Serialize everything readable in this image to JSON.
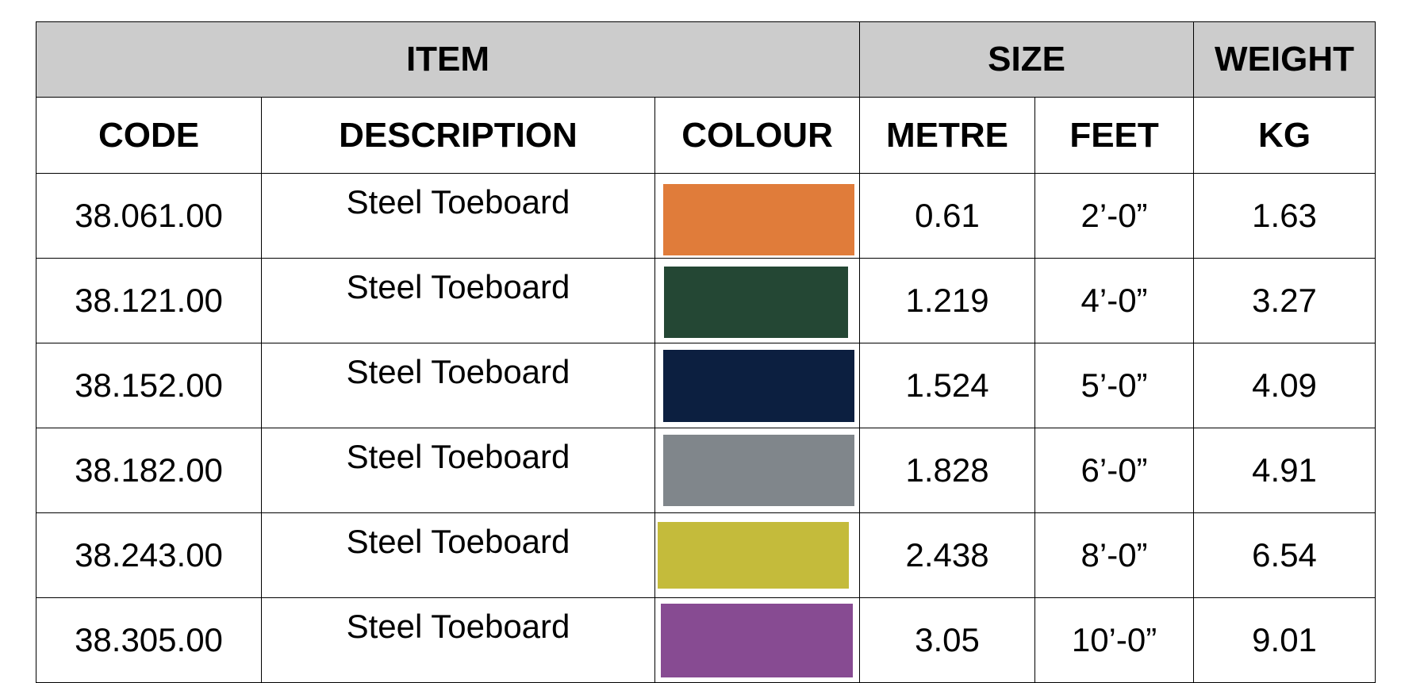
{
  "headers": {
    "group": [
      "ITEM",
      "SIZE",
      "WEIGHT"
    ],
    "columns": [
      "CODE",
      "DESCRIPTION",
      "COLOUR",
      "METRE",
      "FEET",
      "KG"
    ]
  },
  "rows": [
    {
      "code": "38.061.00",
      "description": "Steel Toeboard",
      "colour": "#e07c3a",
      "metre": "0.61",
      "feet": "2’-0”",
      "kg": "1.63"
    },
    {
      "code": "38.121.00",
      "description": "Steel Toeboard",
      "colour": "#244734",
      "metre": "1.219",
      "feet": "4’-0”",
      "kg": "3.27"
    },
    {
      "code": "38.152.00",
      "description": "Steel Toeboard",
      "colour": "#0c1f40",
      "metre": "1.524",
      "feet": "5’-0”",
      "kg": "4.09"
    },
    {
      "code": "38.182.00",
      "description": "Steel Toeboard",
      "colour": "#80868b",
      "metre": "1.828",
      "feet": "6’-0”",
      "kg": "4.91"
    },
    {
      "code": "38.243.00",
      "description": "Steel Toeboard",
      "colour": "#c4bb3b",
      "metre": "2.438",
      "feet": "8’-0”",
      "kg": "6.54"
    },
    {
      "code": "38.305.00",
      "description": "Steel Toeboard",
      "colour": "#874b92",
      "metre": "3.05",
      "feet": "10’-0”",
      "kg": "9.01"
    }
  ]
}
